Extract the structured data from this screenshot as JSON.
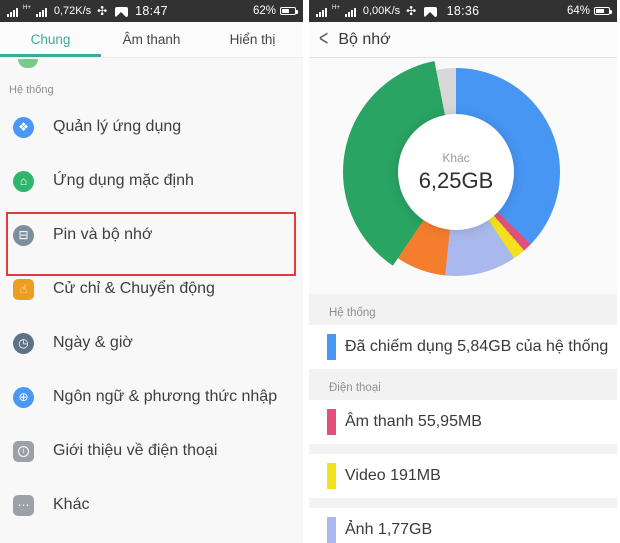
{
  "left_screen": {
    "status_bar": {
      "network_type": "H+",
      "speed": "0,72K/s",
      "time": "18:47",
      "battery_label": "62%",
      "battery_fill": "62%"
    },
    "tabs": [
      {
        "label": "Chung",
        "active": true
      },
      {
        "label": "Âm thanh",
        "active": false
      },
      {
        "label": "Hiển thị",
        "active": false
      }
    ],
    "section_label": "Hệ thống",
    "items": [
      {
        "label": "Quản lý ứng dụng",
        "icon": "app-management-icon",
        "color": "#4a97f5",
        "glyph": "❖"
      },
      {
        "label": "Ứng dụng mặc định",
        "icon": "default-apps-icon",
        "color": "#2eb66d",
        "glyph": "⌂"
      },
      {
        "label": "Pin và bộ nhớ",
        "icon": "battery-storage-icon",
        "color": "#7e8f9c",
        "glyph": "⊟"
      },
      {
        "label": "Cử chỉ & Chuyển động",
        "icon": "gestures-icon",
        "color": "#ef9d1f",
        "glyph": "☝"
      },
      {
        "label": "Ngày & giờ",
        "icon": "date-time-icon",
        "color": "#5d7286",
        "glyph": "◷"
      },
      {
        "label": "Ngôn ngữ & phương thức nhập",
        "icon": "language-input-icon",
        "color": "#4a97f5",
        "glyph": "⊕"
      },
      {
        "label": "Giới thiệu về điện thoại",
        "icon": "about-phone-icon",
        "color": "#9ba1a6",
        "glyph": "i"
      },
      {
        "label": "Khác",
        "icon": "more-icon",
        "color": "#9ba1a6",
        "glyph": "⋯"
      }
    ]
  },
  "right_screen": {
    "status_bar": {
      "network_type": "H+",
      "speed": "0,00K/s",
      "time": "18:36",
      "battery_label": "64%",
      "battery_fill": "64%"
    },
    "header": {
      "back_glyph": "<",
      "title": "Bộ nhớ"
    },
    "sections": {
      "system_label": "Hệ thống",
      "phone_label": "Điện thoại"
    },
    "legend": {
      "system_row": {
        "text": "Đã chiếm dụng 5,84GB của hệ thống",
        "color": "#4796f3"
      },
      "audio_row": {
        "text": "Âm thanh 55,95MB",
        "color": "#e2507a"
      },
      "video_row": {
        "text": "Video 191MB",
        "color": "#f3e11e"
      },
      "photos_row": {
        "text": "Ảnh 1,77GB",
        "color": "#aab9ed"
      }
    }
  },
  "chart_data": {
    "type": "pie",
    "title": "Bộ nhớ",
    "center_label": "Khác",
    "center_value": "6,25GB",
    "legend_position": "below",
    "segments": [
      {
        "label": "Hệ thống",
        "value": "5,84GB",
        "deg": 134,
        "color": "#4796f3"
      },
      {
        "label": "Âm thanh",
        "value": "55,95MB",
        "deg": 5,
        "color": "#e2507a"
      },
      {
        "label": "Video",
        "value": "191MB",
        "deg": 7,
        "color": "#f3e11e"
      },
      {
        "label": "Ảnh",
        "value": "1,77GB",
        "deg": 40,
        "color": "#aab9ed"
      },
      {
        "label": "",
        "value": "",
        "deg": 28,
        "color": "#f57e2e"
      },
      {
        "label": "Khác",
        "value": "6,25GB",
        "deg": 135,
        "color": "#2aa463",
        "highlight": true
      },
      {
        "label": "",
        "value": "",
        "deg": 11,
        "color": "#d8d8d8"
      }
    ]
  }
}
